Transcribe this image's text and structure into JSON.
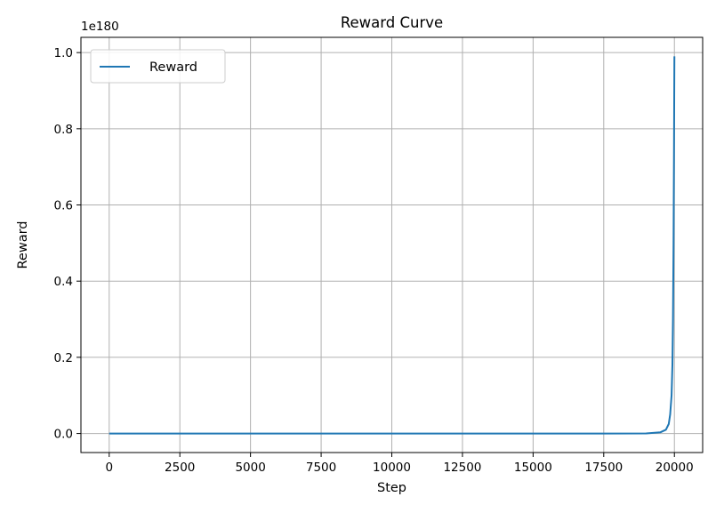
{
  "chart_data": {
    "type": "line",
    "title": "Reward Curve",
    "xlabel": "Step",
    "ylabel": "Reward",
    "offset_text": "1e180",
    "xlim": [
      -1000,
      21000
    ],
    "ylim": [
      -0.05,
      1.04
    ],
    "xticks": [
      0,
      2500,
      5000,
      7500,
      10000,
      12500,
      15000,
      17500,
      20000
    ],
    "xtick_labels": [
      "0",
      "2500",
      "5000",
      "7500",
      "10000",
      "12500",
      "15000",
      "17500",
      "20000"
    ],
    "yticks": [
      0.0,
      0.2,
      0.4,
      0.6,
      0.8,
      1.0
    ],
    "ytick_labels": [
      "0.0",
      "0.2",
      "0.4",
      "0.6",
      "0.8",
      "1.0"
    ],
    "grid": true,
    "legend_position": "upper-left",
    "series": [
      {
        "name": "Reward",
        "color": "#1f77b4",
        "x": [
          0,
          2500,
          5000,
          7500,
          10000,
          12500,
          15000,
          17500,
          19000,
          19500,
          19700,
          19800,
          19850,
          19900,
          19930,
          19950,
          19970,
          19985,
          20000
        ],
        "y": [
          0,
          0,
          0,
          0,
          0,
          0,
          0,
          0,
          0.0003,
          0.003,
          0.01,
          0.025,
          0.05,
          0.1,
          0.18,
          0.3,
          0.5,
          0.72,
          0.99
        ]
      }
    ]
  }
}
